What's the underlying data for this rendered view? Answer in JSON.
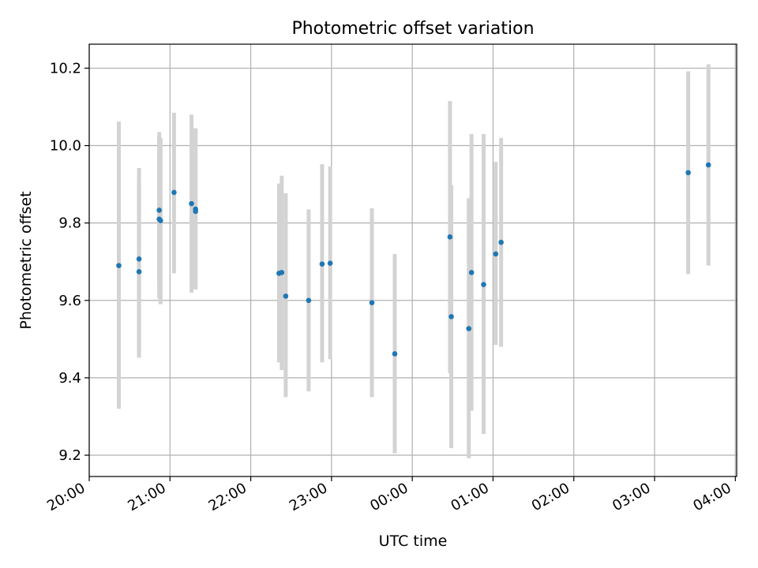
{
  "chart_data": {
    "type": "scatter",
    "title": "Photometric offset variation",
    "xlabel": "UTC time",
    "ylabel": "Photometric offset",
    "x_axis": "time",
    "xlim": [
      "20:00",
      "04:00"
    ],
    "ylim": [
      9.145,
      10.262
    ],
    "x_ticks": [
      "20:00",
      "21:00",
      "22:00",
      "23:00",
      "00:00",
      "01:00",
      "02:00",
      "03:00",
      "04:00"
    ],
    "y_ticks": [
      "9.2",
      "9.4",
      "9.6",
      "9.8",
      "10.0",
      "10.2"
    ],
    "y_tick_values": [
      9.2,
      9.4,
      9.6,
      9.8,
      10.0,
      10.2
    ],
    "grid": true,
    "point_color": "#1f77b4",
    "errorbar_color": "#d3d3d3",
    "points": [
      {
        "t": "20:22",
        "y": 9.69,
        "lo": 9.32,
        "hi": 10.062
      },
      {
        "t": "20:37",
        "y": 9.707,
        "lo": 9.47,
        "hi": 9.942
      },
      {
        "t": "20:37",
        "y": 9.674,
        "lo": 9.452,
        "hi": 9.9
      },
      {
        "t": "20:52",
        "y": 9.833,
        "lo": 9.64,
        "hi": 10.035
      },
      {
        "t": "20:52",
        "y": 9.81,
        "lo": 9.605,
        "hi": 10.02
      },
      {
        "t": "20:53",
        "y": 9.806,
        "lo": 9.59,
        "hi": 10.02
      },
      {
        "t": "21:03",
        "y": 9.879,
        "lo": 9.67,
        "hi": 10.085
      },
      {
        "t": "21:16",
        "y": 9.85,
        "lo": 9.62,
        "hi": 10.08
      },
      {
        "t": "21:19",
        "y": 9.836,
        "lo": 9.63,
        "hi": 10.045
      },
      {
        "t": "21:19",
        "y": 9.83,
        "lo": 9.628,
        "hi": 10.04
      },
      {
        "t": "22:21",
        "y": 9.67,
        "lo": 9.44,
        "hi": 9.902
      },
      {
        "t": "22:23",
        "y": 9.672,
        "lo": 9.42,
        "hi": 9.922
      },
      {
        "t": "22:26",
        "y": 9.611,
        "lo": 9.35,
        "hi": 9.877
      },
      {
        "t": "22:43",
        "y": 9.6,
        "lo": 9.365,
        "hi": 9.835
      },
      {
        "t": "22:53",
        "y": 9.694,
        "lo": 9.44,
        "hi": 9.952
      },
      {
        "t": "22:59",
        "y": 9.696,
        "lo": 9.448,
        "hi": 9.946
      },
      {
        "t": "23:30",
        "y": 9.594,
        "lo": 9.35,
        "hi": 9.838
      },
      {
        "t": "23:47",
        "y": 9.462,
        "lo": 9.205,
        "hi": 9.72
      },
      {
        "t": "00:28",
        "y": 9.764,
        "lo": 9.412,
        "hi": 10.115
      },
      {
        "t": "00:29",
        "y": 9.558,
        "lo": 9.218,
        "hi": 9.898
      },
      {
        "t": "00:42",
        "y": 9.527,
        "lo": 9.192,
        "hi": 9.864
      },
      {
        "t": "00:44",
        "y": 9.672,
        "lo": 9.315,
        "hi": 10.03
      },
      {
        "t": "00:53",
        "y": 9.641,
        "lo": 9.255,
        "hi": 10.03
      },
      {
        "t": "01:02",
        "y": 9.72,
        "lo": 9.485,
        "hi": 9.958
      },
      {
        "t": "01:06",
        "y": 9.75,
        "lo": 9.48,
        "hi": 10.02
      },
      {
        "t": "03:25",
        "y": 9.93,
        "lo": 9.668,
        "hi": 10.192
      },
      {
        "t": "03:40",
        "y": 9.95,
        "lo": 9.69,
        "hi": 10.21
      }
    ]
  }
}
